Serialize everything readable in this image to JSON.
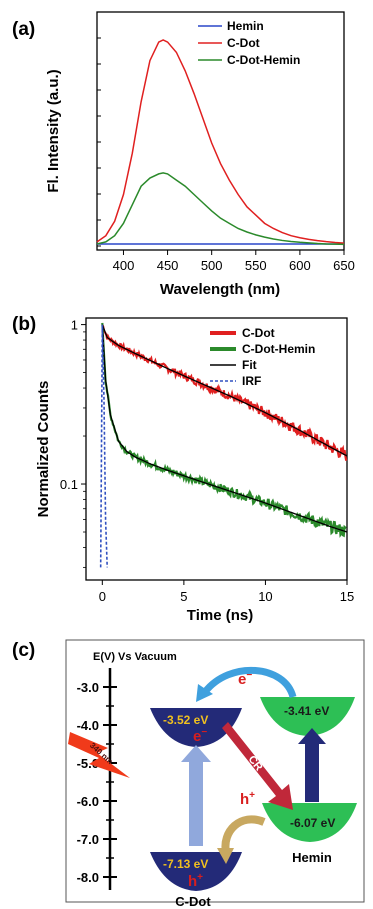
{
  "chart_data": [
    {
      "panel_label": "(a)",
      "type": "line",
      "xlabel": "Wavelength (nm)",
      "ylabel": "Fl. Intensity (a.u.)",
      "xlim": [
        370,
        650
      ],
      "xticks": [
        400,
        450,
        500,
        550,
        600,
        650
      ],
      "legend_position": "top-right",
      "series": [
        {
          "name": "Hemin",
          "color": "#2a46c8",
          "x": [
            370,
            400,
            450,
            500,
            550,
            600,
            650
          ],
          "y": [
            0.01,
            0.01,
            0.01,
            0.01,
            0.01,
            0.01,
            0.01
          ]
        },
        {
          "name": "C-Dot",
          "color": "#e02020",
          "x": [
            370,
            380,
            390,
            400,
            410,
            420,
            430,
            440,
            445,
            450,
            460,
            470,
            480,
            490,
            500,
            510,
            520,
            530,
            540,
            550,
            560,
            570,
            580,
            590,
            600,
            610,
            620,
            630,
            640,
            650
          ],
          "y": [
            0.02,
            0.05,
            0.12,
            0.25,
            0.45,
            0.7,
            0.9,
            0.99,
            1.0,
            0.99,
            0.94,
            0.85,
            0.74,
            0.62,
            0.5,
            0.4,
            0.32,
            0.25,
            0.19,
            0.15,
            0.11,
            0.085,
            0.065,
            0.05,
            0.04,
            0.032,
            0.026,
            0.021,
            0.017,
            0.014
          ]
        },
        {
          "name": "C-Dot-Hemin",
          "color": "#2b8a2b",
          "x": [
            370,
            380,
            390,
            400,
            410,
            420,
            430,
            440,
            445,
            450,
            460,
            470,
            480,
            490,
            500,
            510,
            520,
            530,
            540,
            550,
            560,
            570,
            580,
            590,
            600,
            610,
            620,
            630,
            640,
            650
          ],
          "y": [
            0.01,
            0.02,
            0.05,
            0.11,
            0.2,
            0.29,
            0.33,
            0.35,
            0.355,
            0.35,
            0.32,
            0.29,
            0.25,
            0.21,
            0.17,
            0.135,
            0.11,
            0.085,
            0.068,
            0.054,
            0.043,
            0.034,
            0.027,
            0.022,
            0.018,
            0.015,
            0.012,
            0.01,
            0.009,
            0.008
          ]
        }
      ]
    },
    {
      "panel_label": "(b)",
      "type": "line",
      "xlabel": "Time (ns)",
      "ylabel": "Normalized Counts",
      "yscale": "log",
      "xlim": [
        -1,
        15
      ],
      "ylim": [
        0.025,
        1.1
      ],
      "xticks": [
        0,
        5,
        10,
        15
      ],
      "yticks": [
        1,
        0.1
      ],
      "ytick_labels": [
        "1",
        "0.1"
      ],
      "legend_position": "top-right",
      "series": [
        {
          "name": "C-Dot",
          "color": "#e02020",
          "x": [
            0,
            0.3,
            1,
            2,
            4,
            6,
            8,
            10,
            12,
            14,
            15
          ],
          "y": [
            1.0,
            0.83,
            0.74,
            0.66,
            0.53,
            0.43,
            0.35,
            0.28,
            0.22,
            0.17,
            0.15
          ]
        },
        {
          "name": "C-Dot-Hemin",
          "color": "#2b8a2b",
          "x": [
            0,
            0.2,
            0.5,
            1,
            1.5,
            2,
            3,
            4,
            6,
            8,
            10,
            12,
            14,
            15
          ],
          "y": [
            1.0,
            0.45,
            0.27,
            0.185,
            0.16,
            0.148,
            0.133,
            0.122,
            0.104,
            0.089,
            0.076,
            0.064,
            0.054,
            0.05
          ]
        },
        {
          "name": "Fit",
          "color": "#000000"
        },
        {
          "name": "IRF",
          "color": "#3050c0",
          "x": [
            -0.1,
            0,
            0.1,
            0.2,
            0.3
          ],
          "y": [
            0.03,
            1.0,
            0.35,
            0.06,
            0.03
          ]
        }
      ]
    }
  ],
  "diagram": {
    "panel_label": "(c)",
    "axis_label": "E(V) Vs Vacuum",
    "axis_ticks": [
      "-3.0",
      "-4.0",
      "-5.0",
      "-6.0",
      "-7.0",
      "-8.0"
    ],
    "cdot_lumo": "-3.52 eV",
    "cdot_homo": "-7.13 eV",
    "hemin_lumo": "-3.41 eV",
    "hemin_homo": "-6.07 eV",
    "electron": "e",
    "electron_lumo": "e",
    "hole_transfer": "h",
    "hole_homo": "h",
    "cr_label": "CR",
    "excitation": "340 nm",
    "cdot_name": "C-Dot",
    "hemin_name": "Hemin",
    "colors": {
      "cdot": "#232a78",
      "hemin": "#2dbf55",
      "value_text": "#f0c020",
      "electron": "#d81e1e",
      "cr_arrow": "#c0283a",
      "excite_arrow": "#90a8dc",
      "hole_arrow": "#c8a860",
      "up_arrow": "#232a78",
      "e_arrow": "#3fa0de",
      "flash": "#f03a1a"
    }
  }
}
